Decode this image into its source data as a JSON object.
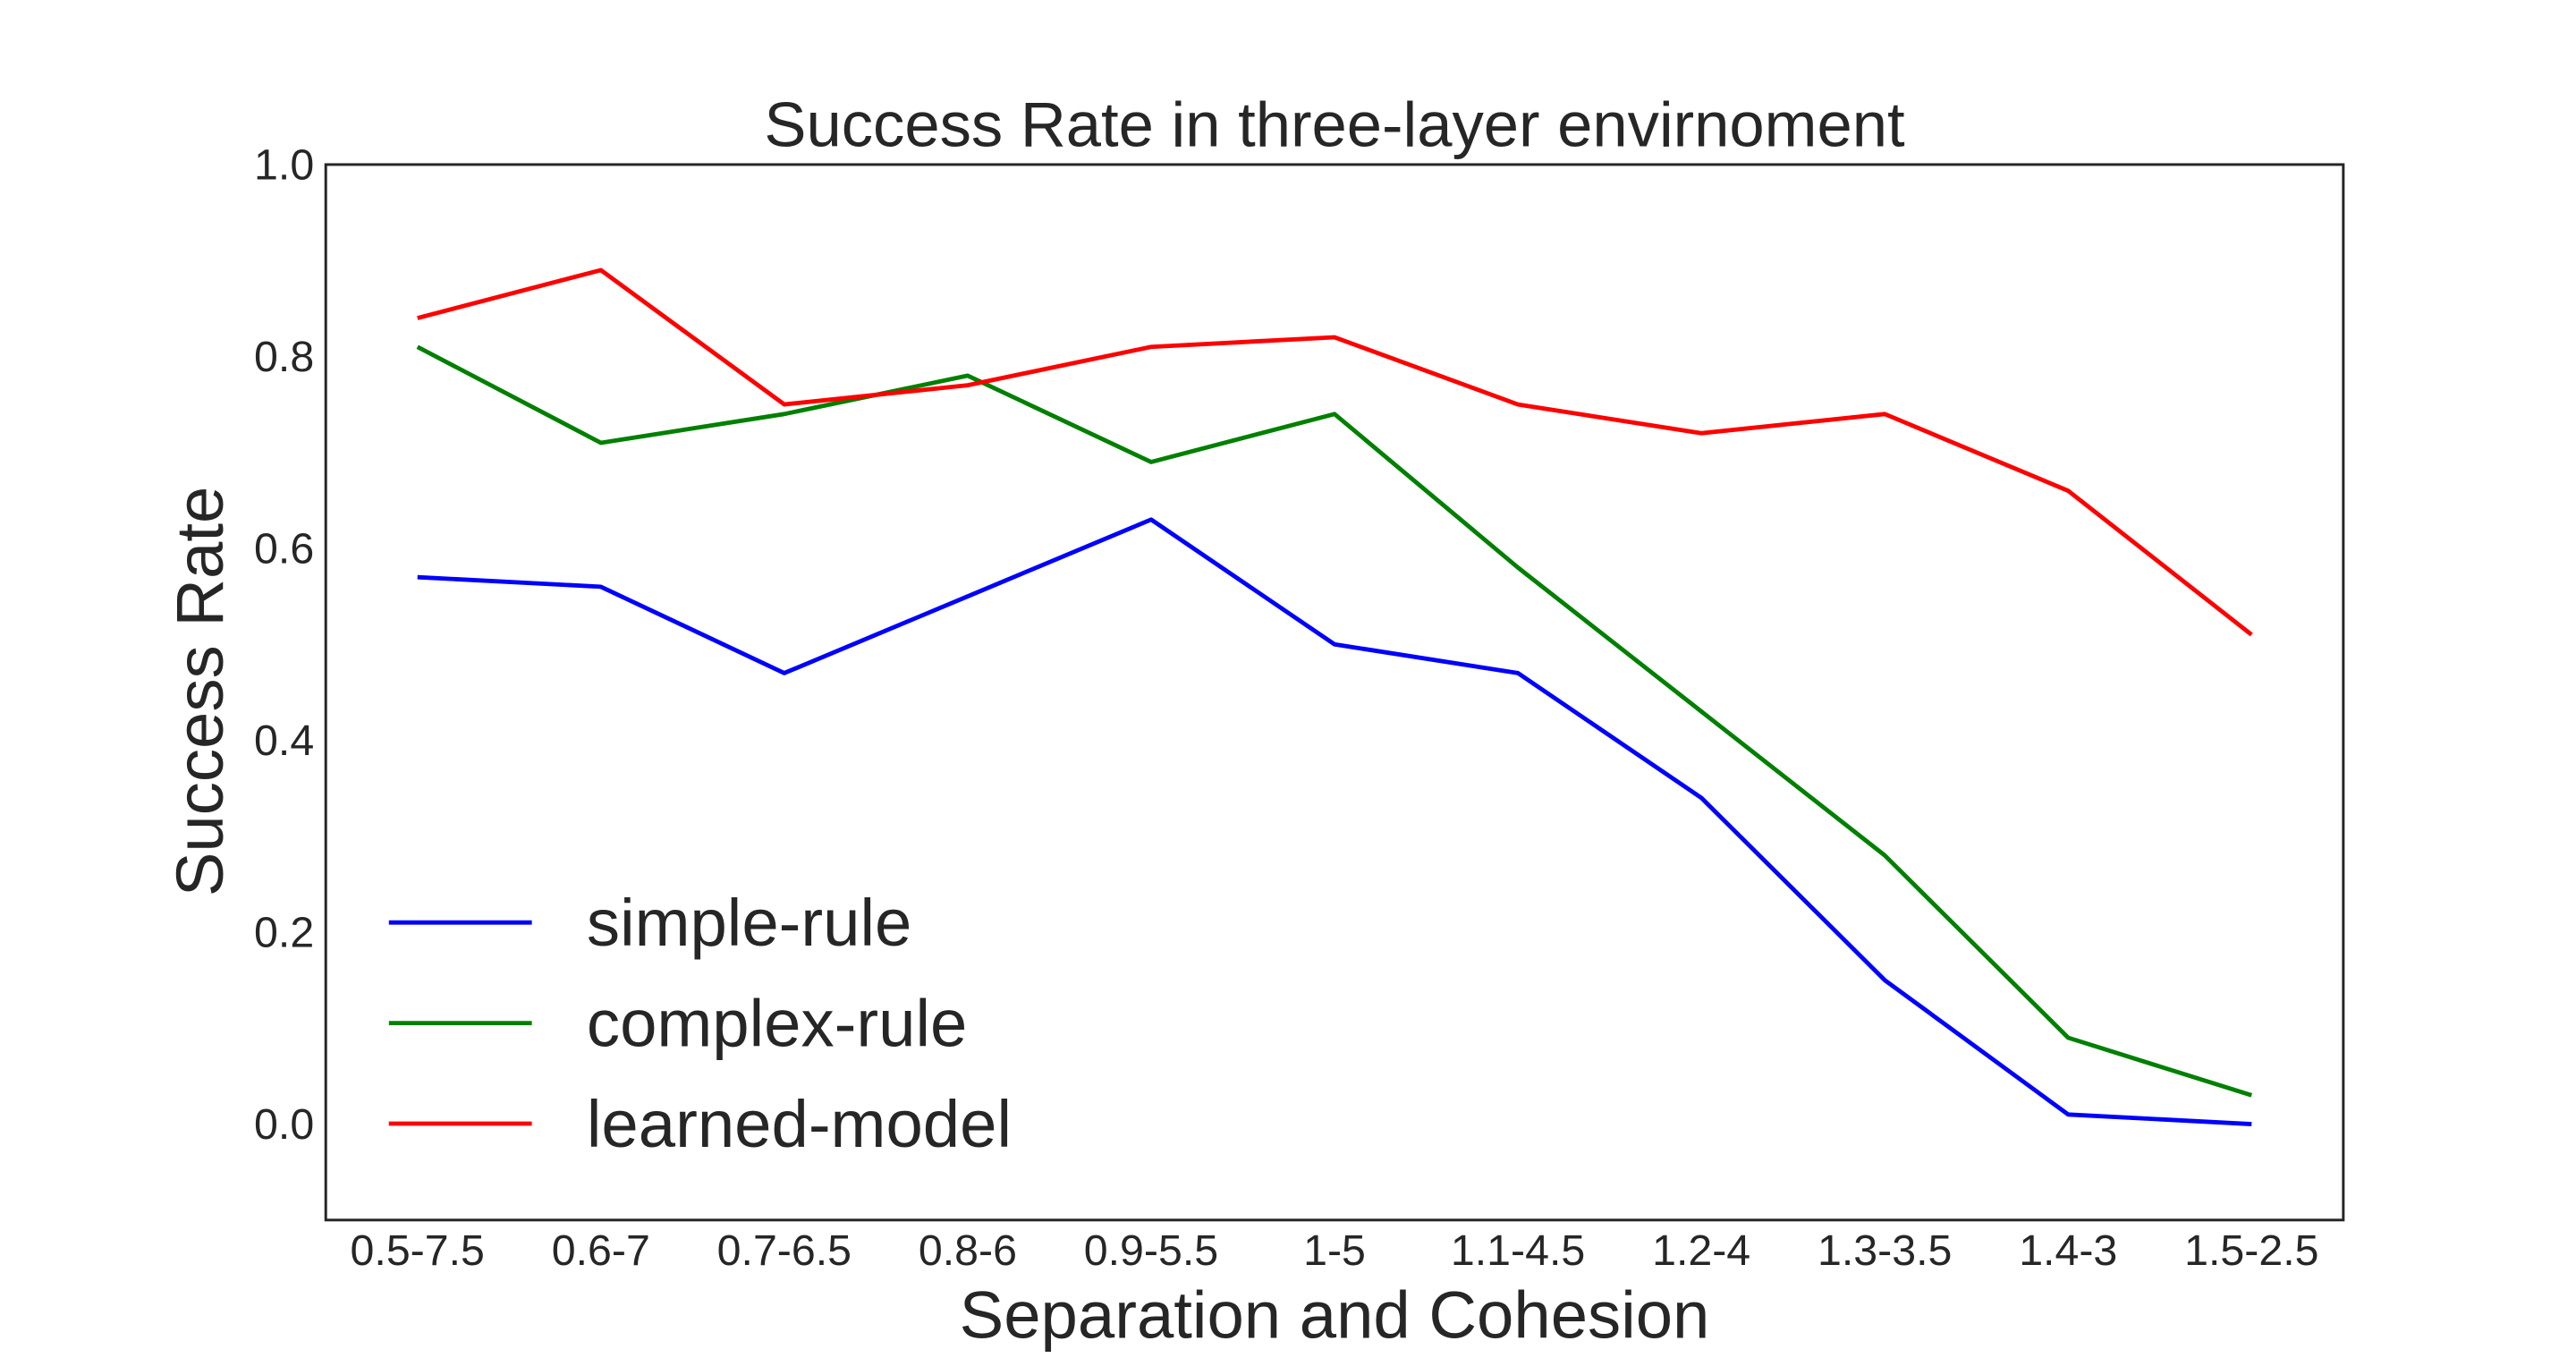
{
  "chart_data": {
    "type": "line",
    "title": "Success Rate in three-layer envirnoment",
    "xlabel": "Separation and Cohesion",
    "ylabel": "Success Rate",
    "categories": [
      "0.5-7.5",
      "0.6-7",
      "0.7-6.5",
      "0.8-6",
      "0.9-5.5",
      "1-5",
      "1.1-4.5",
      "1.2-4",
      "1.3-3.5",
      "1.4-3",
      "1.5-2.5"
    ],
    "ylim": [
      -0.1,
      1.0
    ],
    "yticks": [
      "0.0",
      "0.2",
      "0.4",
      "0.6",
      "0.8",
      "1.0"
    ],
    "grid": false,
    "legend_position": "lower-left",
    "series": [
      {
        "name": "simple-rule",
        "color": "#0000ff",
        "values": [
          0.57,
          0.56,
          0.47,
          0.55,
          0.63,
          0.5,
          0.47,
          0.34,
          0.15,
          0.01,
          0.0
        ]
      },
      {
        "name": "complex-rule",
        "color": "#008000",
        "values": [
          0.81,
          0.71,
          0.74,
          0.78,
          0.69,
          0.74,
          0.58,
          0.43,
          0.28,
          0.09,
          0.03
        ]
      },
      {
        "name": "learned-model",
        "color": "#ff0000",
        "values": [
          0.84,
          0.89,
          0.75,
          0.77,
          0.81,
          0.82,
          0.75,
          0.72,
          0.74,
          0.66,
          0.51
        ]
      }
    ]
  }
}
